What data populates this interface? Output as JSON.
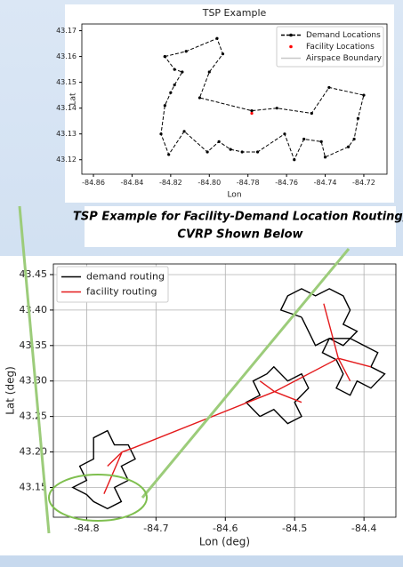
{
  "caption": [
    "TSP Example for Facility-Demand Location Routing;",
    "CVRP Shown Below"
  ],
  "chart_data": [
    {
      "type": "line",
      "title": "TSP Example",
      "xlabel": "Lon",
      "ylabel": "Lat",
      "xlim": [
        -84.866,
        -84.708
      ],
      "ylim": [
        43.1144,
        43.1726
      ],
      "xticks": [
        -84.86,
        -84.84,
        -84.82,
        {
          "value": -84.8,
          "label": "-84.80"
        },
        -84.78,
        -84.76,
        -84.74,
        -84.72
      ],
      "yticks": [
        43.12,
        43.13,
        43.14,
        43.15,
        43.16,
        43.17
      ],
      "grid": false,
      "legend": "upper-right",
      "series": [
        {
          "name": "Demand Locations",
          "color": "#000000",
          "linestyle": "dashed",
          "marker": "dot",
          "x": [
            -84.823,
            -84.812,
            -84.796,
            -84.793,
            -84.8,
            -84.805,
            -84.778,
            -84.765,
            -84.747,
            -84.738,
            -84.72,
            -84.723,
            -84.725,
            -84.728,
            -84.74,
            -84.742,
            -84.751,
            -84.756,
            -84.761,
            -84.775,
            -84.783,
            -84.789,
            -84.795,
            -84.801,
            -84.813,
            -84.821,
            -84.825,
            -84.823,
            -84.82,
            -84.818,
            -84.814,
            -84.818,
            -84.823
          ],
          "values": [
            43.16,
            43.162,
            43.167,
            43.161,
            43.154,
            43.144,
            43.139,
            43.14,
            43.138,
            43.148,
            43.145,
            43.136,
            43.128,
            43.125,
            43.121,
            43.127,
            43.128,
            43.12,
            43.13,
            43.123,
            43.123,
            43.124,
            43.127,
            43.123,
            43.131,
            43.122,
            43.13,
            43.141,
            43.146,
            43.149,
            43.154,
            43.155,
            43.16
          ]
        },
        {
          "name": "Facility Locations",
          "color": "#ff0000",
          "linestyle": "none",
          "marker": "dot",
          "x": [
            -84.778
          ],
          "values": [
            43.138
          ]
        },
        {
          "name": "Airspace Boundary",
          "color": "#c8c8c8",
          "linestyle": "solid",
          "marker": "none",
          "x": [],
          "values": []
        }
      ]
    },
    {
      "type": "line",
      "xlabel": "Lon (deg)",
      "ylabel": "Lat (deg)",
      "xlim": [
        -84.848,
        -84.354
      ],
      "ylim": [
        43.108,
        43.465
      ],
      "xticks": [
        -84.8,
        -84.7,
        -84.6,
        -84.5,
        -84.4
      ],
      "yticks": [
        43.15,
        {
          "value": 43.2,
          "label": "43.20"
        },
        43.25,
        {
          "value": 43.3,
          "label": "43.30"
        },
        43.35,
        {
          "value": 43.4,
          "label": "43.40"
        },
        43.45
      ],
      "grid": true,
      "legend": "upper-left",
      "series": [
        {
          "name": "demand routing",
          "color": "#000000",
          "linestyle": "solid",
          "marker": "none",
          "x": [
            -84.8,
            -84.82,
            -84.8,
            -84.81,
            -84.79,
            -84.79,
            -84.77,
            -84.76,
            -84.74,
            -84.73,
            -84.75,
            -84.74,
            -84.76,
            -84.75,
            -84.77,
            -84.79,
            -84.8,
            null,
            -84.55,
            -84.57,
            -84.55,
            -84.56,
            -84.54,
            -84.53,
            -84.51,
            -84.49,
            -84.48,
            -84.5,
            -84.49,
            -84.51,
            -84.53,
            -84.55,
            null,
            -84.49,
            -84.52,
            -84.51,
            -84.49,
            -84.47,
            -84.45,
            -84.43,
            -84.42,
            -84.43,
            -84.41,
            -84.43,
            -84.45,
            -84.47,
            -84.48,
            -84.49,
            null,
            -84.44,
            -84.46,
            -84.45,
            -84.42,
            -84.4,
            -84.38,
            -84.39,
            -84.37,
            -84.39,
            -84.41,
            -84.42,
            -84.44,
            -84.43,
            -84.44
          ],
          "values": [
            43.14,
            43.15,
            43.16,
            43.18,
            43.19,
            43.22,
            43.23,
            43.21,
            43.21,
            43.19,
            43.18,
            43.16,
            43.15,
            43.13,
            43.12,
            43.13,
            43.14,
            null,
            43.25,
            43.27,
            43.28,
            43.3,
            43.31,
            43.32,
            43.3,
            43.31,
            43.29,
            43.27,
            43.25,
            43.24,
            43.26,
            43.25,
            null,
            43.39,
            43.4,
            43.42,
            43.43,
            43.42,
            43.43,
            43.42,
            43.4,
            43.38,
            43.37,
            43.35,
            43.36,
            43.35,
            43.37,
            43.39,
            null,
            43.33,
            43.34,
            43.36,
            43.36,
            43.35,
            43.34,
            43.32,
            43.31,
            43.29,
            43.3,
            43.28,
            43.29,
            43.31,
            43.33
          ]
        },
        {
          "name": "facility routing",
          "color": "#e41a1c",
          "linestyle": "solid",
          "marker": "none",
          "x": [
            -84.775,
            -84.749,
            -84.732,
            -84.529,
            -84.437,
            -84.458,
            null,
            -84.529,
            -84.55,
            null,
            -84.529,
            -84.49,
            null,
            -84.437,
            -84.39,
            null,
            -84.437,
            -84.42,
            null,
            -84.749,
            -84.77
          ],
          "values": [
            43.141,
            43.2,
            43.206,
            43.285,
            43.332,
            43.409,
            null,
            43.285,
            43.3,
            null,
            43.285,
            43.27,
            null,
            43.332,
            43.32,
            null,
            43.332,
            43.3,
            null,
            43.2,
            43.18
          ]
        }
      ]
    }
  ]
}
